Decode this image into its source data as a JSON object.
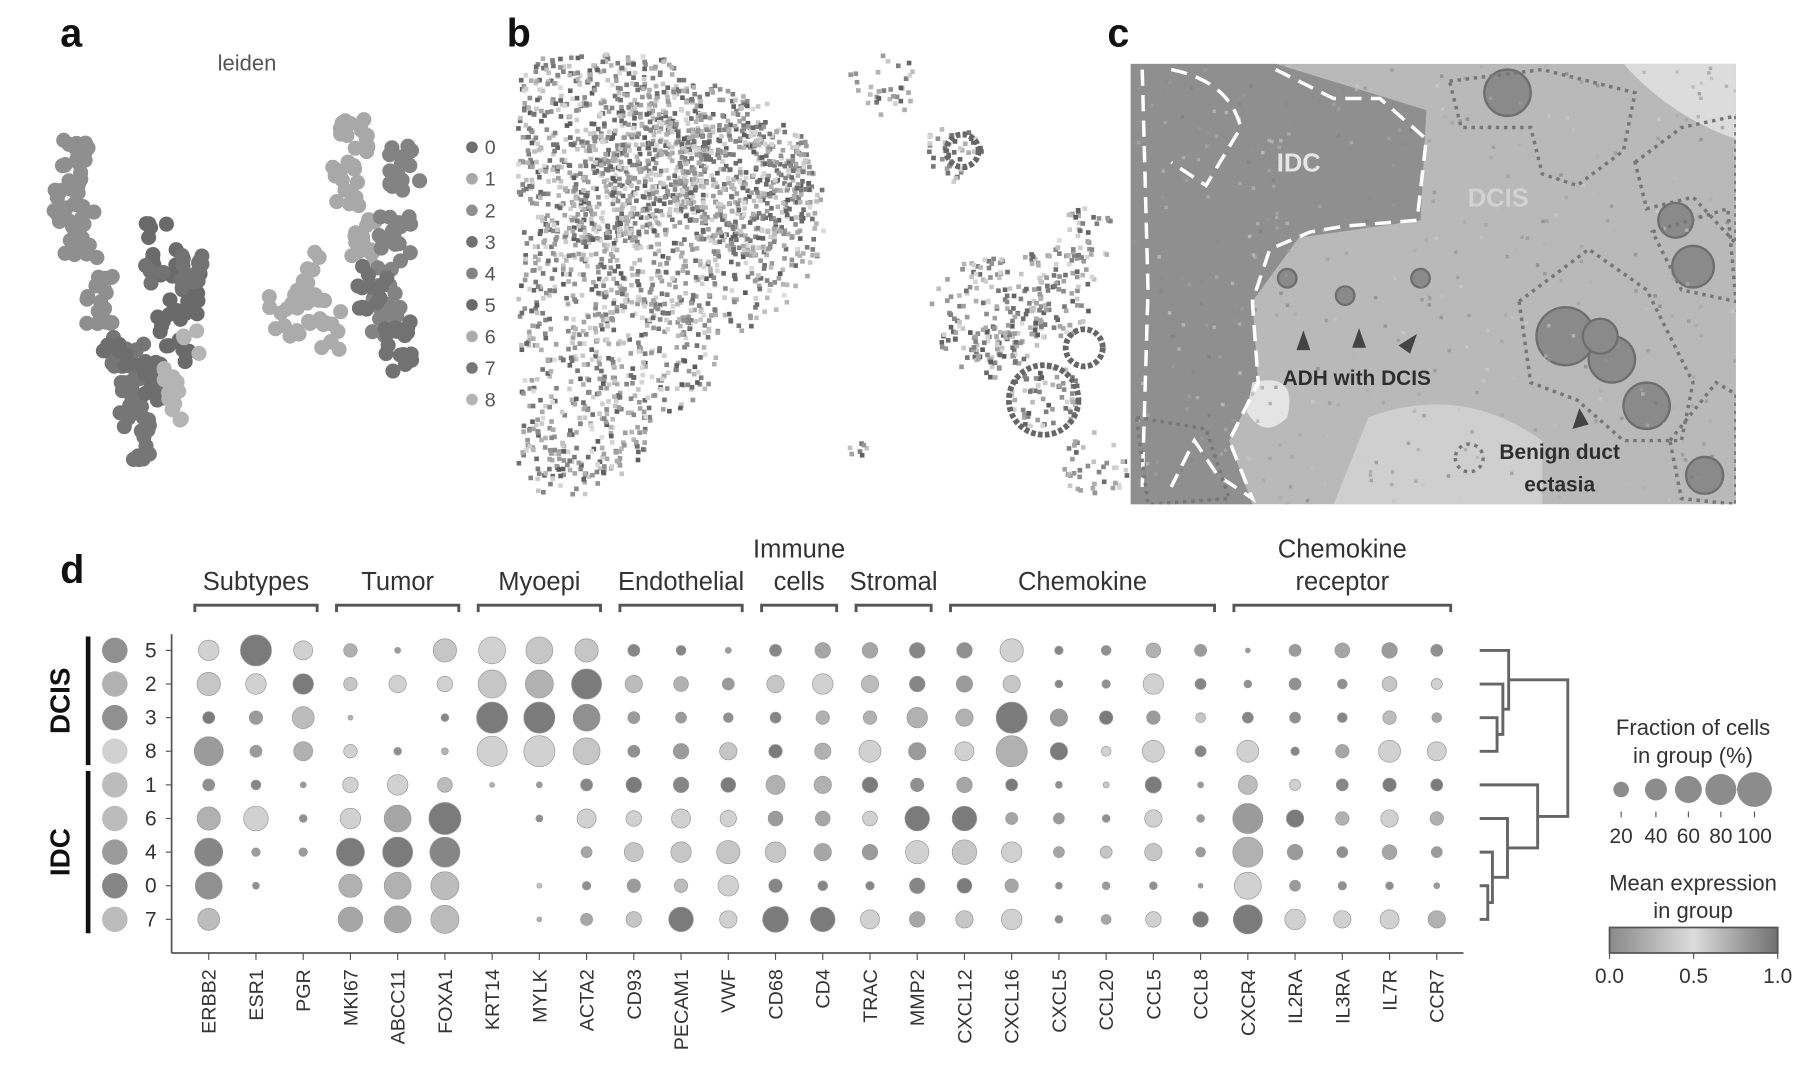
{
  "panel_labels": {
    "a": "a",
    "b": "b",
    "c": "c",
    "d": "d"
  },
  "panel_a": {
    "legend_title": "leiden",
    "clusters": [
      "0",
      "1",
      "2",
      "3",
      "4",
      "5",
      "6",
      "7",
      "8"
    ],
    "cluster_colors": [
      "#6e6e6e",
      "#a8a8a8",
      "#8f8f8f",
      "#727272",
      "#838383",
      "#6a6a6a",
      "#ababab",
      "#767676",
      "#b4b4b4"
    ]
  },
  "panel_c": {
    "labels": {
      "idc": "IDC",
      "dcis": "DCIS",
      "adh": "ADH with DCIS",
      "benign_1": "Benign duct",
      "benign_2": "ectasia"
    }
  },
  "chart_data": {
    "type": "dotplot",
    "title": "",
    "row_groups": [
      {
        "label": "DCIS",
        "rows": [
          "5",
          "2",
          "3",
          "8"
        ]
      },
      {
        "label": "IDC",
        "rows": [
          "1",
          "6",
          "4",
          "0",
          "7"
        ]
      }
    ],
    "rows": [
      "5",
      "2",
      "3",
      "8",
      "1",
      "6",
      "4",
      "0",
      "7"
    ],
    "row_group_color_level": [
      0.85,
      0.7,
      0.85,
      0.55,
      0.65,
      0.65,
      0.8,
      0.9,
      0.65
    ],
    "gene_groups": [
      {
        "label_lines": [
          "Subtypes"
        ],
        "genes": [
          "ERBB2",
          "ESR1",
          "PGR"
        ]
      },
      {
        "label_lines": [
          "Tumor"
        ],
        "genes": [
          "MKI67",
          "ABCC11",
          "FOXA1"
        ]
      },
      {
        "label_lines": [
          "Myoepi"
        ],
        "genes": [
          "KRT14",
          "MYLK",
          "ACTA2"
        ]
      },
      {
        "label_lines": [
          "Endothelial"
        ],
        "genes": [
          "CD93",
          "PECAM1",
          "VWF"
        ]
      },
      {
        "label_lines": [
          "Immune",
          "cells"
        ],
        "genes": [
          "CD68",
          "CD4"
        ]
      },
      {
        "label_lines": [
          "Stromal"
        ],
        "genes": [
          "TRAC",
          "MMP2"
        ]
      },
      {
        "label_lines": [
          "Chemokine"
        ],
        "genes": [
          "CXCL12",
          "CXCL16",
          "CXCL5",
          "CCL20",
          "CCL5",
          "CCL8"
        ]
      },
      {
        "label_lines": [
          "Chemokine",
          "receptor"
        ],
        "genes": [
          "CXCR4",
          "IL2RA",
          "IL3RA",
          "IL7R",
          "CCR7"
        ]
      }
    ],
    "genes": [
      "ERBB2",
      "ESR1",
      "PGR",
      "MKI67",
      "ABCC11",
      "FOXA1",
      "KRT14",
      "MYLK",
      "ACTA2",
      "CD93",
      "PECAM1",
      "VWF",
      "CD68",
      "CD4",
      "TRAC",
      "MMP2",
      "CXCL12",
      "CXCL16",
      "CXCL5",
      "CCL20",
      "CCL5",
      "CCL8",
      "CXCR4",
      "IL2RA",
      "IL3RA",
      "IL7R",
      "CCR7"
    ],
    "fraction_pct": [
      [
        35,
        80,
        30,
        15,
        3,
        45,
        60,
        60,
        45,
        12,
        8,
        3,
        12,
        20,
        20,
        20,
        20,
        45,
        6,
        8,
        18,
        12,
        2,
        12,
        18,
        20,
        12
      ],
      [
        45,
        35,
        35,
        15,
        25,
        20,
        65,
        65,
        75,
        25,
        18,
        12,
        25,
        35,
        25,
        20,
        22,
        25,
        5,
        6,
        35,
        10,
        5,
        12,
        8,
        18,
        10
      ],
      [
        12,
        15,
        40,
        2,
        0,
        5,
        80,
        80,
        60,
        12,
        10,
        8,
        10,
        15,
        15,
        35,
        25,
        80,
        25,
        15,
        15,
        8,
        10,
        10,
        8,
        15,
        8
      ],
      [
        70,
        12,
        30,
        15,
        5,
        4,
        75,
        80,
        60,
        12,
        20,
        25,
        15,
        22,
        40,
        25,
        30,
        80,
        25,
        8,
        40,
        10,
        40,
        6,
        15,
        40,
        30
      ],
      [
        12,
        8,
        3,
        20,
        35,
        18,
        2,
        3,
        12,
        20,
        20,
        18,
        30,
        25,
        20,
        15,
        20,
        12,
        4,
        3,
        22,
        3,
        30,
        10,
        12,
        15,
        12
      ],
      [
        45,
        50,
        5,
        35,
        60,
        85,
        0,
        4,
        30,
        20,
        30,
        22,
        18,
        18,
        18,
        50,
        50,
        12,
        10,
        5,
        25,
        5,
        75,
        25,
        15,
        25,
        15
      ],
      [
        65,
        6,
        6,
        65,
        75,
        75,
        0,
        0,
        10,
        30,
        35,
        45,
        35,
        25,
        20,
        45,
        50,
        35,
        10,
        12,
        25,
        8,
        75,
        20,
        10,
        18,
        10
      ],
      [
        60,
        4,
        0,
        45,
        60,
        65,
        0,
        2,
        6,
        15,
        15,
        35,
        15,
        8,
        6,
        20,
        18,
        15,
        4,
        5,
        5,
        2,
        60,
        10,
        6,
        5,
        3
      ],
      [
        40,
        0,
        0,
        50,
        60,
        65,
        0,
        2,
        12,
        20,
        50,
        25,
        55,
        50,
        30,
        20,
        25,
        35,
        5,
        8,
        20,
        20,
        70,
        35,
        25,
        30,
        25
      ]
    ],
    "mean_expression": [
      [
        0.55,
        0.95,
        0.55,
        0.7,
        0.8,
        0.6,
        0.55,
        0.6,
        0.6,
        0.9,
        0.9,
        0.8,
        0.9,
        0.75,
        0.75,
        0.9,
        0.85,
        0.55,
        0.9,
        0.85,
        0.7,
        0.8,
        0.8,
        0.8,
        0.75,
        0.8,
        0.85
      ],
      [
        0.6,
        0.55,
        0.95,
        0.6,
        0.55,
        0.55,
        0.6,
        0.7,
        0.95,
        0.65,
        0.7,
        0.8,
        0.6,
        0.55,
        0.65,
        0.9,
        0.8,
        0.6,
        0.9,
        0.85,
        0.55,
        0.9,
        0.85,
        0.85,
        0.85,
        0.6,
        0.55
      ],
      [
        0.95,
        0.8,
        0.65,
        0.7,
        0,
        0.9,
        0.95,
        0.95,
        0.85,
        0.8,
        0.8,
        0.85,
        0.9,
        0.7,
        0.7,
        0.7,
        0.7,
        0.95,
        0.8,
        0.95,
        0.8,
        0.6,
        0.9,
        0.85,
        0.9,
        0.65,
        0.75
      ],
      [
        0.8,
        0.8,
        0.7,
        0.55,
        0.85,
        0.7,
        0.55,
        0.55,
        0.6,
        0.85,
        0.8,
        0.6,
        0.95,
        0.7,
        0.55,
        0.8,
        0.55,
        0.7,
        0.95,
        0.55,
        0.55,
        0.9,
        0.55,
        0.9,
        0.75,
        0.55,
        0.55
      ],
      [
        0.85,
        0.9,
        0.8,
        0.55,
        0.55,
        0.65,
        0.7,
        0.8,
        0.9,
        0.95,
        0.9,
        0.95,
        0.7,
        0.7,
        0.95,
        0.85,
        0.75,
        0.95,
        0.85,
        0.6,
        0.95,
        0.8,
        0.65,
        0.55,
        0.9,
        0.95,
        0.95
      ],
      [
        0.7,
        0.55,
        0.85,
        0.55,
        0.75,
        0.95,
        0,
        0.85,
        0.55,
        0.55,
        0.55,
        0.55,
        0.8,
        0.75,
        0.55,
        0.95,
        0.95,
        0.75,
        0.8,
        0.85,
        0.55,
        0.8,
        0.8,
        0.95,
        0.7,
        0.55,
        0.7
      ],
      [
        0.9,
        0.8,
        0.8,
        0.95,
        0.95,
        0.9,
        0,
        0,
        0.75,
        0.6,
        0.6,
        0.6,
        0.6,
        0.75,
        0.8,
        0.55,
        0.6,
        0.55,
        0.75,
        0.6,
        0.6,
        0.8,
        0.7,
        0.8,
        0.85,
        0.75,
        0.8
      ],
      [
        0.85,
        0.85,
        0,
        0.7,
        0.7,
        0.65,
        0,
        0.6,
        0.85,
        0.8,
        0.65,
        0.55,
        0.9,
        0.9,
        0.9,
        0.9,
        0.95,
        0.75,
        0.85,
        0.8,
        0.85,
        0.8,
        0.55,
        0.8,
        0.85,
        0.85,
        0.8
      ],
      [
        0.65,
        0,
        0,
        0.75,
        0.75,
        0.65,
        0,
        0.7,
        0.75,
        0.6,
        0.95,
        0.55,
        0.95,
        0.95,
        0.55,
        0.75,
        0.6,
        0.55,
        0.85,
        0.75,
        0.55,
        0.95,
        0.95,
        0.55,
        0.55,
        0.55,
        0.7
      ]
    ],
    "size_legend": {
      "title_lines": [
        "Fraction of cells",
        "in group (%)"
      ],
      "values": [
        20,
        40,
        60,
        80,
        100
      ],
      "tick_labels": [
        "20",
        "40",
        "60",
        "80",
        "100"
      ]
    },
    "color_legend": {
      "title_lines": [
        "Mean expression",
        "in group"
      ],
      "range": [
        0,
        1
      ],
      "tick_labels": [
        "0.0",
        "0.5",
        "1.0"
      ]
    },
    "dendrogram": "right",
    "grid": false
  }
}
